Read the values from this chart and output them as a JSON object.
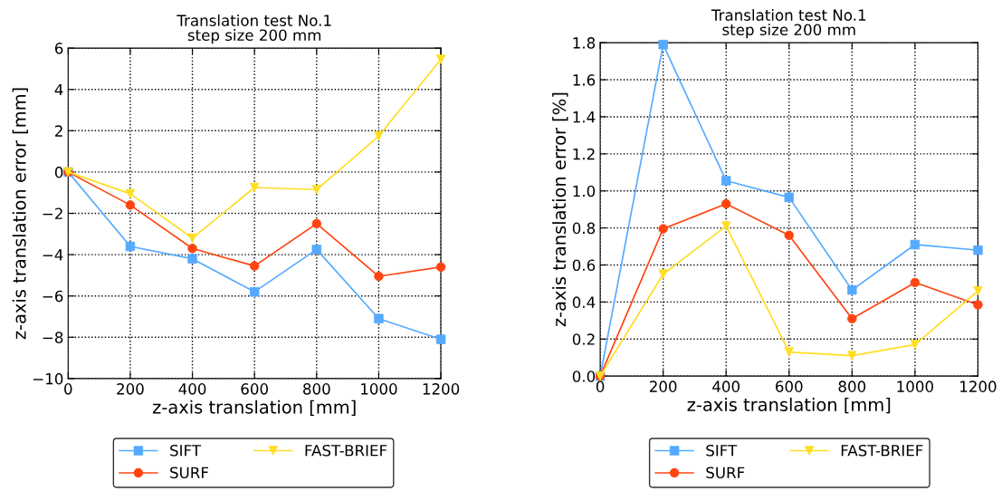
{
  "chart_data": [
    {
      "type": "line",
      "title": "Translation test No.1\nstep size 200 mm",
      "xlabel": "z-axis translation [mm]",
      "ylabel": "z-axis translation error [mm]",
      "x": [
        0,
        200,
        400,
        600,
        800,
        1000,
        1200
      ],
      "xlim": [
        0,
        1200
      ],
      "xticks": [
        0,
        200,
        400,
        600,
        800,
        1000,
        1200
      ],
      "ylim": [
        -10,
        6
      ],
      "yticks": [
        {
          "value": -10,
          "label": "−10"
        },
        {
          "value": -8,
          "label": "−8"
        },
        {
          "value": -6,
          "label": "−6"
        },
        {
          "value": -4,
          "label": "−4"
        },
        {
          "value": -2,
          "label": "−2"
        },
        0,
        2,
        4,
        6
      ],
      "grid": true,
      "legend": "bottom",
      "line_style": "solid",
      "series": [
        {
          "name": "SIFT",
          "color": "#55aaff",
          "marker": "square",
          "values": [
            0,
            -3.6,
            -4.2,
            -5.8,
            -3.75,
            -7.1,
            -8.1
          ]
        },
        {
          "name": "SURF",
          "color": "#ff4411",
          "marker": "circle",
          "values": [
            0,
            -1.6,
            -3.7,
            -4.55,
            -2.5,
            -5.05,
            -4.6
          ]
        },
        {
          "name": "FAST-BRIEF",
          "color": "#ffdd22",
          "marker": "triangle",
          "values": [
            0,
            -1.05,
            -3.2,
            -0.75,
            -0.85,
            1.75,
            5.45
          ]
        }
      ]
    },
    {
      "type": "line",
      "title": "Translation test No.1\nstep size 200 mm",
      "xlabel": "z-axis translation [mm]",
      "ylabel": "z-axis translation error [%]",
      "x": [
        0,
        200,
        400,
        600,
        800,
        1000,
        1200
      ],
      "xlim": [
        0,
        1200
      ],
      "xticks": [
        0,
        200,
        400,
        600,
        800,
        1000,
        1200
      ],
      "ylim": [
        0,
        1.8
      ],
      "yticks": [
        {
          "value": 0,
          "label": "0.0"
        },
        {
          "value": 0.2,
          "label": "0.2"
        },
        {
          "value": 0.4,
          "label": "0.4"
        },
        {
          "value": 0.6,
          "label": "0.6"
        },
        {
          "value": 0.8,
          "label": "0.8"
        },
        {
          "value": 1.0,
          "label": "1.0"
        },
        {
          "value": 1.2,
          "label": "1.2"
        },
        {
          "value": 1.4,
          "label": "1.4"
        },
        {
          "value": 1.6,
          "label": "1.6"
        },
        {
          "value": 1.8,
          "label": "1.8"
        }
      ],
      "grid": true,
      "legend": "bottom",
      "line_style": "solid",
      "series": [
        {
          "name": "SIFT",
          "color": "#55aaff",
          "marker": "square",
          "values": [
            0,
            1.79,
            1.055,
            0.965,
            0.465,
            0.71,
            0.68
          ]
        },
        {
          "name": "SURF",
          "color": "#ff4411",
          "marker": "circle",
          "values": [
            0,
            0.795,
            0.93,
            0.76,
            0.31,
            0.505,
            0.385
          ]
        },
        {
          "name": "FAST-BRIEF",
          "color": "#ffdd22",
          "marker": "triangle",
          "values": [
            0,
            0.55,
            0.81,
            0.13,
            0.11,
            0.17,
            0.46
          ]
        }
      ]
    }
  ]
}
